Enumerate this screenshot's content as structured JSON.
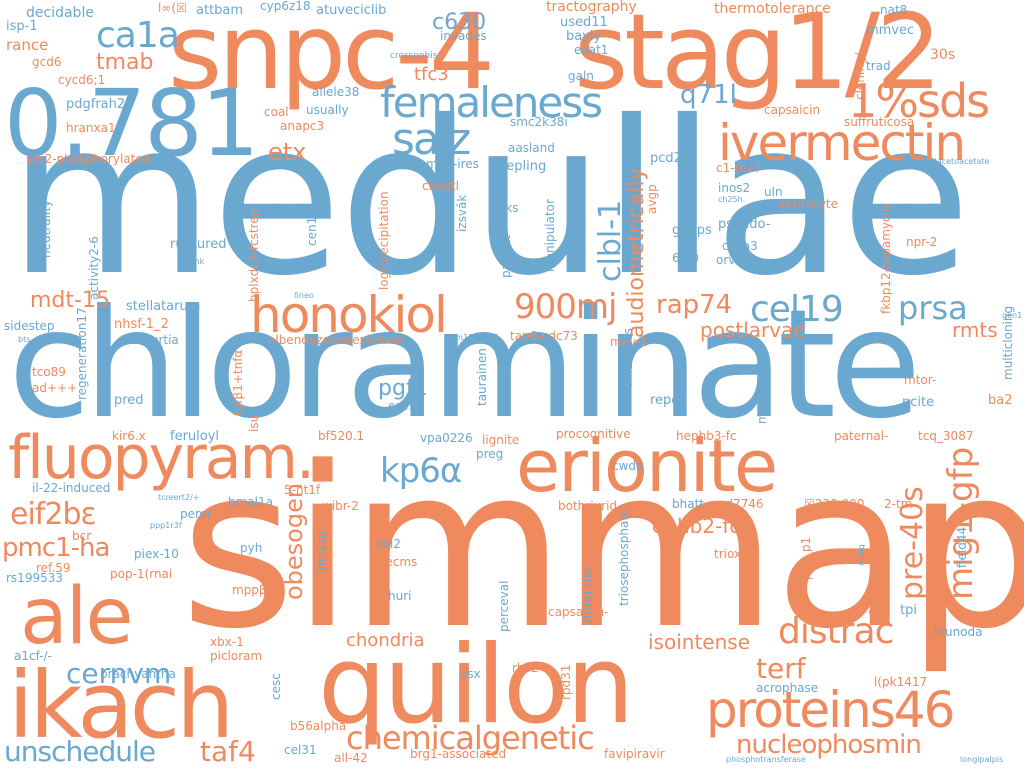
{
  "palette": {
    "blue": "#6aa8d0",
    "orange": "#ef8a5e"
  },
  "words": [
    {
      "text": "medullae",
      "color": "blue"
    },
    {
      "text": "simmap",
      "color": "orange"
    },
    {
      "text": "chloraminate",
      "color": "blue"
    },
    {
      "text": "snpc-4",
      "color": "orange"
    },
    {
      "text": "stag1/2",
      "color": "orange"
    },
    {
      "text": "quilon",
      "color": "orange"
    },
    {
      "text": "0.781",
      "color": "blue"
    },
    {
      "text": "ikach",
      "color": "orange"
    },
    {
      "text": "ale",
      "color": "orange"
    },
    {
      "text": "erionite",
      "color": "orange"
    },
    {
      "text": "fluopyram.",
      "color": "orange"
    },
    {
      "text": "proteins46",
      "color": "orange"
    },
    {
      "text": "honokiol",
      "color": "orange"
    },
    {
      "text": "ivermectin",
      "color": "orange"
    },
    {
      "text": "femaleness",
      "color": "blue"
    },
    {
      "text": "1%sds",
      "color": "orange"
    },
    {
      "text": "salz",
      "color": "blue"
    },
    {
      "text": "ca1a",
      "color": "blue"
    },
    {
      "text": "tmab",
      "color": "orange"
    },
    {
      "text": "etx",
      "color": "orange"
    },
    {
      "text": "900mj",
      "color": "orange"
    },
    {
      "text": "cel19",
      "color": "blue"
    },
    {
      "text": "prsa",
      "color": "blue"
    },
    {
      "text": "rap74",
      "color": "orange"
    },
    {
      "text": "distrac",
      "color": "orange"
    },
    {
      "text": "kp6α",
      "color": "blue"
    },
    {
      "text": "eif2bε",
      "color": "orange"
    },
    {
      "text": "pmc1-ha",
      "color": "orange"
    },
    {
      "text": "obesogen",
      "color": "orange"
    },
    {
      "text": "mig1-gfp",
      "color": "orange"
    },
    {
      "text": "pre-40s",
      "color": "orange"
    },
    {
      "text": "clbl-1",
      "color": "blue"
    },
    {
      "text": "audiometrically",
      "color": "orange"
    },
    {
      "text": "cernvm",
      "color": "blue"
    },
    {
      "text": "chemicalgenetic",
      "color": "orange"
    },
    {
      "text": "nucleophosmin",
      "color": "orange"
    },
    {
      "text": "unschedule",
      "color": "blue"
    },
    {
      "text": "taf4",
      "color": "orange"
    },
    {
      "text": "terf",
      "color": "orange"
    },
    {
      "text": "q71l",
      "color": "blue"
    },
    {
      "text": "mdt-15",
      "color": "orange"
    },
    {
      "text": "c630",
      "color": "blue"
    },
    {
      "text": "tfc3",
      "color": "orange"
    },
    {
      "text": "postlarvae",
      "color": "orange"
    },
    {
      "text": "rmts",
      "color": "orange"
    },
    {
      "text": "pgf1",
      "color": "blue"
    },
    {
      "text": "chondria",
      "color": "orange"
    },
    {
      "text": "isointense",
      "color": "orange"
    },
    {
      "text": "ephb2-fc",
      "color": "orange"
    },
    {
      "text": "decidable",
      "color": "blue"
    },
    {
      "text": "l∞(☒",
      "color": "orange"
    },
    {
      "text": "attbam",
      "color": "blue"
    },
    {
      "text": "cyp6z18",
      "color": "blue"
    },
    {
      "text": "atuveciclib",
      "color": "blue"
    },
    {
      "text": "tractography",
      "color": "orange"
    },
    {
      "text": "thermotolerance",
      "color": "orange"
    },
    {
      "text": "nat8",
      "color": "blue"
    },
    {
      "text": "isp-1",
      "color": "blue"
    },
    {
      "text": "used11",
      "color": "blue"
    },
    {
      "text": "invades",
      "color": "blue"
    },
    {
      "text": "bayly",
      "color": "blue"
    },
    {
      "text": "eaat1",
      "color": "blue"
    },
    {
      "text": "mmvec",
      "color": "blue"
    },
    {
      "text": "rance",
      "color": "orange"
    },
    {
      "text": "gcd6",
      "color": "orange"
    },
    {
      "text": "crossnobis",
      "color": "blue"
    },
    {
      "text": "30s",
      "color": "orange"
    },
    {
      "text": "trad",
      "color": "blue"
    },
    {
      "text": "cycd6;1",
      "color": "orange"
    },
    {
      "text": "allele38",
      "color": "blue"
    },
    {
      "text": "galn",
      "color": "blue"
    },
    {
      "text": "pdgfrah2b",
      "color": "blue"
    },
    {
      "text": "coal",
      "color": "orange"
    },
    {
      "text": "usually",
      "color": "blue"
    },
    {
      "text": "capsaicin",
      "color": "orange"
    },
    {
      "text": "suffruticosa",
      "color": "orange"
    },
    {
      "text": "cloning/",
      "color": "orange"
    },
    {
      "text": "hranxa1",
      "color": "orange"
    },
    {
      "text": "anapc3",
      "color": "orange"
    },
    {
      "text": "smc2k38i",
      "color": "blue"
    },
    {
      "text": "aasland",
      "color": "blue"
    },
    {
      "text": "ser2-phosphorylated",
      "color": "orange"
    },
    {
      "text": "m72-ires",
      "color": "blue"
    },
    {
      "text": "pcd2",
      "color": "blue"
    },
    {
      "text": "c1-m27",
      "color": "orange"
    },
    {
      "text": "fumarylacetoacetate",
      "color": "blue"
    },
    {
      "text": "cnvqtl",
      "color": "orange"
    },
    {
      "text": "pepling",
      "color": "blue"
    },
    {
      "text": "inos2",
      "color": "blue"
    },
    {
      "text": "ch25h.",
      "color": "blue"
    },
    {
      "text": "uln",
      "color": "blue"
    },
    {
      "text": "vermicyte",
      "color": "orange"
    },
    {
      "text": "neutrality",
      "color": "blue"
    },
    {
      "text": "izsvák",
      "color": "blue"
    },
    {
      "text": "avgp",
      "color": "orange"
    },
    {
      "text": "aks",
      "color": "blue"
    },
    {
      "text": "manipulator",
      "color": "blue"
    },
    {
      "text": "pseudo-",
      "color": "blue"
    },
    {
      "text": "padgitt",
      "color": "blue"
    },
    {
      "text": "activity2-6",
      "color": "blue"
    },
    {
      "text": "cen13",
      "color": "blue"
    },
    {
      "text": "ruptured",
      "color": "blue"
    },
    {
      "text": "log(precipitation",
      "color": "orange"
    },
    {
      "text": "gh2ps",
      "color": "blue"
    },
    {
      "text": "cdca3",
      "color": "blue"
    },
    {
      "text": "npr-2",
      "color": "orange"
    },
    {
      "text": "mmk",
      "color": "blue"
    },
    {
      "text": "6:00",
      "color": "blue"
    },
    {
      "text": "orvt",
      "color": "blue"
    },
    {
      "text": "fkbp12-rapamycin",
      "color": "orange"
    },
    {
      "text": "hplxdc2-fcstrep",
      "color": "orange"
    },
    {
      "text": "δneo",
      "color": "blue"
    },
    {
      "text": "stellatarum",
      "color": "blue"
    },
    {
      "text": "gen1",
      "color": "blue"
    },
    {
      "text": "sidestep",
      "color": "blue"
    },
    {
      "text": "regeneration17",
      "color": "blue"
    },
    {
      "text": "nhsf-1_2",
      "color": "orange"
    },
    {
      "text": "flacourtia",
      "color": "blue"
    },
    {
      "text": "bts",
      "color": "blue"
    },
    {
      "text": "albendazolemexiletine",
      "color": "orange"
    },
    {
      "text": "gsm1000563",
      "color": "blue"
    },
    {
      "text": "tap6-cdc73",
      "color": "orange"
    },
    {
      "text": "mev-1",
      "color": "orange"
    },
    {
      "text": "multicloning",
      "color": "blue"
    },
    {
      "text": "tco89",
      "color": "orange"
    },
    {
      "text": "ad+++",
      "color": "orange"
    },
    {
      "text": "tgfβ1+tnfα",
      "color": "orange"
    },
    {
      "text": "taurainen",
      "color": "blue"
    },
    {
      "text": "midimacs",
      "color": "blue"
    },
    {
      "text": "meloidogyne",
      "color": "blue"
    },
    {
      "text": "mtor-",
      "color": "orange"
    },
    {
      "text": "pred",
      "color": "blue"
    },
    {
      "text": "esims",
      "color": "blue"
    },
    {
      "text": "repc",
      "color": "blue"
    },
    {
      "text": "pcite",
      "color": "blue"
    },
    {
      "text": "ba2",
      "color": "orange"
    },
    {
      "text": "kir6.x",
      "color": "orange"
    },
    {
      "text": "isu",
      "color": "orange"
    },
    {
      "text": "feruloyl",
      "color": "blue"
    },
    {
      "text": "bf520.1",
      "color": "orange"
    },
    {
      "text": "vpa0226",
      "color": "blue"
    },
    {
      "text": "lignite",
      "color": "orange"
    },
    {
      "text": "procognitive",
      "color": "orange"
    },
    {
      "text": "hephb3-fc",
      "color": "orange"
    },
    {
      "text": "paternal-",
      "color": "orange"
    },
    {
      "text": "tcq_3087",
      "color": "orange"
    },
    {
      "text": "preg",
      "color": "blue"
    },
    {
      "text": "cwda",
      "color": "blue"
    },
    {
      "text": "il-22-induced",
      "color": "blue"
    },
    {
      "text": "5-ht1f",
      "color": "orange"
    },
    {
      "text": "tcreert2/+",
      "color": "blue"
    },
    {
      "text": "bmal1a",
      "color": "blue"
    },
    {
      "text": "wibr-2",
      "color": "orange"
    },
    {
      "text": "bothriurid",
      "color": "orange"
    },
    {
      "text": "bhatt",
      "color": "blue"
    },
    {
      "text": "ad7746",
      "color": "orange"
    },
    {
      "text": "☒230,000",
      "color": "orange"
    },
    {
      "text": "2-tm",
      "color": "orange"
    },
    {
      "text": "field44",
      "color": "blue"
    },
    {
      "text": "pemr",
      "color": "blue"
    },
    {
      "text": "ppp1r3f",
      "color": "blue"
    },
    {
      "text": "bcr",
      "color": "orange"
    },
    {
      "text": "htr1aa",
      "color": "blue"
    },
    {
      "text": "col2",
      "color": "blue"
    },
    {
      "text": "pyh",
      "color": "blue"
    },
    {
      "text": "aecms",
      "color": "orange"
    },
    {
      "text": "piex-10",
      "color": "blue"
    },
    {
      "text": "ref.59",
      "color": "orange"
    },
    {
      "text": "rs199533",
      "color": "blue"
    },
    {
      "text": "pop-1(rnai",
      "color": "orange"
    },
    {
      "text": "triosephosphate",
      "color": "blue"
    },
    {
      "text": "trioxide",
      "color": "orange"
    },
    {
      "text": "2008).the",
      "color": "blue"
    },
    {
      "text": "pak_p1",
      "color": "orange"
    },
    {
      "text": "milliq",
      "color": "blue"
    },
    {
      "text": "δn-4g1",
      "color": "orange"
    },
    {
      "text": "mppβ",
      "color": "orange"
    },
    {
      "text": "huri",
      "color": "blue"
    },
    {
      "text": "perceval",
      "color": "blue"
    },
    {
      "text": "capsaicin-",
      "color": "orange"
    },
    {
      "text": "tpi",
      "color": "blue"
    },
    {
      "text": "tsunoda",
      "color": "blue"
    },
    {
      "text": "a1cf-/-",
      "color": "blue"
    },
    {
      "text": "xbx-1",
      "color": "orange"
    },
    {
      "text": "picloram",
      "color": "orange"
    },
    {
      "text": "brachyantha",
      "color": "blue"
    },
    {
      "text": "cesc",
      "color": "blue"
    },
    {
      "text": "osx",
      "color": "blue"
    },
    {
      "text": "rhil2",
      "color": "orange"
    },
    {
      "text": "rpd31",
      "color": "orange"
    },
    {
      "text": "acrophase",
      "color": "blue"
    },
    {
      "text": "l(pk1417",
      "color": "orange"
    },
    {
      "text": "b56alpha",
      "color": "orange"
    },
    {
      "text": "cel31",
      "color": "blue"
    },
    {
      "text": "all-42",
      "color": "orange"
    },
    {
      "text": "brg1-associated",
      "color": "orange"
    },
    {
      "text": "favipiravir",
      "color": "orange"
    },
    {
      "text": "phosphotransferase",
      "color": "blue"
    },
    {
      "text": "longipalpis",
      "color": "blue"
    }
  ]
}
